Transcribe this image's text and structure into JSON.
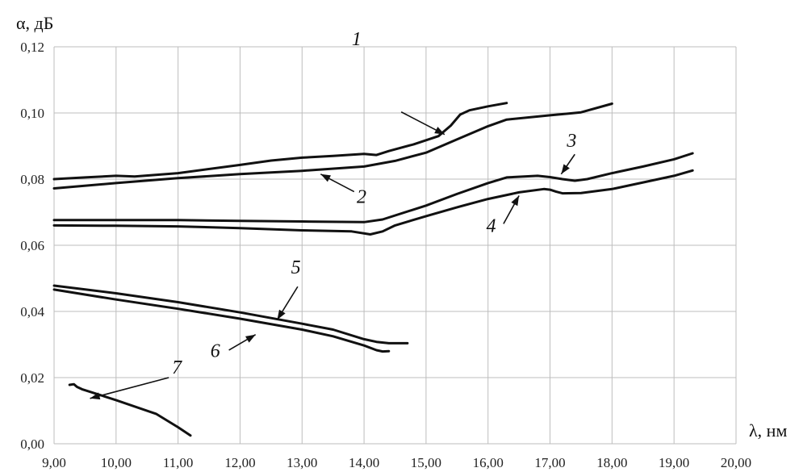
{
  "chart_data": {
    "type": "line",
    "xlabel": "λ, нм",
    "ylabel": "α, дБ",
    "xlim": [
      9,
      20
    ],
    "ylim": [
      0,
      0.12
    ],
    "grid": true,
    "x_ticks": [
      "9,00",
      "10,00",
      "11,00",
      "12,00",
      "13,00",
      "14,00",
      "15,00",
      "16,00",
      "17,00",
      "18,00",
      "19,00",
      "20,00"
    ],
    "y_ticks": [
      "0,00",
      "0,02",
      "0,04",
      "0,06",
      "0,08",
      "0,10",
      "0,12"
    ],
    "series": [
      {
        "name": "1",
        "points": [
          [
            9.0,
            0.08
          ],
          [
            9.5,
            0.0805
          ],
          [
            10.0,
            0.081
          ],
          [
            10.3,
            0.0808
          ],
          [
            11.0,
            0.0818
          ],
          [
            12.0,
            0.0843
          ],
          [
            12.5,
            0.0856
          ],
          [
            13.0,
            0.0865
          ],
          [
            13.5,
            0.087
          ],
          [
            14.0,
            0.0876
          ],
          [
            14.2,
            0.0873
          ],
          [
            14.4,
            0.0885
          ],
          [
            14.8,
            0.0905
          ],
          [
            15.2,
            0.093
          ],
          [
            15.4,
            0.0962
          ],
          [
            15.55,
            0.0995
          ],
          [
            15.7,
            0.1008
          ],
          [
            16.0,
            0.102
          ],
          [
            16.3,
            0.103
          ]
        ]
      },
      {
        "name": "2",
        "points": [
          [
            9.0,
            0.0772
          ],
          [
            10.0,
            0.0788
          ],
          [
            11.0,
            0.0803
          ],
          [
            12.0,
            0.0815
          ],
          [
            13.0,
            0.0825
          ],
          [
            14.0,
            0.0838
          ],
          [
            14.5,
            0.0855
          ],
          [
            15.0,
            0.088
          ],
          [
            15.5,
            0.092
          ],
          [
            16.0,
            0.096
          ],
          [
            16.3,
            0.098
          ],
          [
            17.0,
            0.0993
          ],
          [
            17.3,
            0.0998
          ],
          [
            17.5,
            0.1002
          ],
          [
            18.0,
            0.1028
          ]
        ]
      },
      {
        "name": "3",
        "points": [
          [
            9.0,
            0.0676
          ],
          [
            10.0,
            0.0676
          ],
          [
            11.0,
            0.0676
          ],
          [
            12.0,
            0.0674
          ],
          [
            13.0,
            0.0672
          ],
          [
            14.0,
            0.067
          ],
          [
            14.3,
            0.0678
          ],
          [
            15.0,
            0.072
          ],
          [
            15.5,
            0.0755
          ],
          [
            16.0,
            0.0788
          ],
          [
            16.3,
            0.0805
          ],
          [
            16.8,
            0.081
          ],
          [
            17.0,
            0.0806
          ],
          [
            17.2,
            0.08
          ],
          [
            17.4,
            0.0795
          ],
          [
            17.6,
            0.08
          ],
          [
            18.0,
            0.0818
          ],
          [
            18.5,
            0.0838
          ],
          [
            19.0,
            0.086
          ],
          [
            19.3,
            0.0878
          ]
        ]
      },
      {
        "name": "4",
        "points": [
          [
            9.0,
            0.066
          ],
          [
            10.0,
            0.0659
          ],
          [
            11.0,
            0.0657
          ],
          [
            12.0,
            0.0652
          ],
          [
            13.0,
            0.0645
          ],
          [
            13.8,
            0.0642
          ],
          [
            14.1,
            0.0633
          ],
          [
            14.3,
            0.0642
          ],
          [
            14.5,
            0.066
          ],
          [
            15.0,
            0.0688
          ],
          [
            15.5,
            0.0715
          ],
          [
            16.0,
            0.074
          ],
          [
            16.5,
            0.076
          ],
          [
            16.9,
            0.077
          ],
          [
            17.0,
            0.0768
          ],
          [
            17.1,
            0.0762
          ],
          [
            17.2,
            0.0757
          ],
          [
            17.5,
            0.0758
          ],
          [
            18.0,
            0.077
          ],
          [
            18.5,
            0.079
          ],
          [
            19.0,
            0.081
          ],
          [
            19.3,
            0.0826
          ]
        ]
      },
      {
        "name": "5",
        "points": [
          [
            9.0,
            0.0478
          ],
          [
            10.0,
            0.0455
          ],
          [
            11.0,
            0.0428
          ],
          [
            12.0,
            0.0397
          ],
          [
            13.0,
            0.0363
          ],
          [
            13.5,
            0.0345
          ],
          [
            14.0,
            0.0316
          ],
          [
            14.2,
            0.0308
          ],
          [
            14.4,
            0.0304
          ],
          [
            14.7,
            0.0304
          ]
        ]
      },
      {
        "name": "6",
        "points": [
          [
            9.0,
            0.0466
          ],
          [
            10.0,
            0.0436
          ],
          [
            11.0,
            0.0408
          ],
          [
            12.0,
            0.0378
          ],
          [
            13.0,
            0.0345
          ],
          [
            13.5,
            0.0325
          ],
          [
            14.0,
            0.0297
          ],
          [
            14.2,
            0.0283
          ],
          [
            14.3,
            0.0279
          ],
          [
            14.4,
            0.028
          ]
        ]
      },
      {
        "name": "7",
        "points": [
          [
            9.25,
            0.0178
          ],
          [
            9.32,
            0.018
          ],
          [
            9.37,
            0.0172
          ],
          [
            9.45,
            0.0165
          ],
          [
            10.0,
            0.0132
          ],
          [
            10.65,
            0.009
          ],
          [
            11.0,
            0.005
          ],
          [
            11.2,
            0.0025
          ]
        ]
      }
    ],
    "annotations": [
      {
        "text": "1",
        "label_at": [
          13.88,
          0.1205
        ],
        "arrow_from": [
          14.6,
          0.1003
        ],
        "arrow_to": [
          15.3,
          0.0935
        ]
      },
      {
        "text": "2",
        "label_at": [
          13.96,
          0.0728
        ],
        "arrow_from": [
          13.84,
          0.0762
        ],
        "arrow_to": [
          13.3,
          0.0815
        ]
      },
      {
        "text": "3",
        "label_at": [
          17.35,
          0.0898
        ],
        "arrow_from": [
          17.4,
          0.0875
        ],
        "arrow_to": [
          17.18,
          0.0815
        ]
      },
      {
        "text": "4",
        "label_at": [
          16.05,
          0.064
        ],
        "arrow_from": [
          16.25,
          0.0665
        ],
        "arrow_to": [
          16.5,
          0.075
        ]
      },
      {
        "text": "5",
        "label_at": [
          12.9,
          0.0515
        ],
        "arrow_from": [
          12.93,
          0.0475
        ],
        "arrow_to": [
          12.6,
          0.0375
        ]
      },
      {
        "text": "6",
        "label_at": [
          11.6,
          0.0262
        ],
        "arrow_from": [
          11.82,
          0.0283
        ],
        "arrow_to": [
          12.25,
          0.033
        ]
      },
      {
        "text": "7",
        "label_at": [
          10.98,
          0.0212
        ],
        "arrow_from": [
          10.85,
          0.02
        ],
        "arrow_to": [
          9.58,
          0.0137
        ]
      }
    ]
  }
}
